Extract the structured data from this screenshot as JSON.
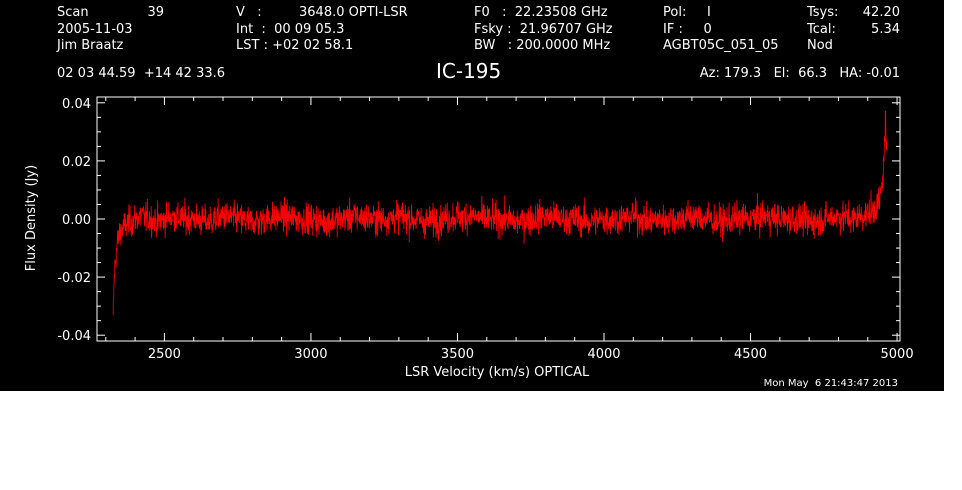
{
  "header": {
    "scan_label": "Scan",
    "scan_value": "39",
    "date": "2005-11-03",
    "observer": "Jim Braatz",
    "velocity_label": "V   :",
    "velocity_value": "3648.0 OPTI-LSR",
    "int_line": "Int  :  00 09 05.3",
    "lst_line": "LST : +02 02 58.1",
    "f0_line": "F0   :  22.23508 GHz",
    "fsky_line": "Fsky :  21.96707 GHz",
    "bw_line": "BW   : 200.0000 MHz",
    "pol_line": "Pol:     I",
    "if_line": "IF :     0",
    "project": "AGBT05C_051_05",
    "tsys_label": "Tsys:",
    "tsys_value": "42.20",
    "tcal_label": "Tcal:",
    "tcal_value": "5.34",
    "mode": "Nod",
    "coordinates": "02 03 44.59  +14 42 33.6",
    "source": "IC-195",
    "pointing": "Az: 179.3   El:  66.3   HA: -0.01",
    "timestamp": "Mon May  6 21:43:47 2013"
  },
  "colors": {
    "background": "#000000",
    "foreground": "#ffffff",
    "trace": "#ff0000"
  },
  "chart_data": {
    "type": "line",
    "xlabel": "LSR Velocity (km/s) OPTICAL",
    "ylabel": "Flux Density (Jy)",
    "xlim": [
      2270,
      5010
    ],
    "ylim": [
      -0.042,
      0.042
    ],
    "x_ticks": [
      2500,
      3000,
      3500,
      4000,
      4500,
      5000
    ],
    "y_ticks": [
      -0.04,
      -0.02,
      0.0,
      0.02,
      0.04
    ],
    "x_tick_labels": [
      "2500",
      "3000",
      "3500",
      "4000",
      "4500",
      "5000"
    ],
    "y_tick_labels": [
      "-0.04",
      "-0.02",
      "0.00",
      "0.02",
      "0.04"
    ],
    "grid": false,
    "series": [
      {
        "color": "#ff0000",
        "x": [
          2325,
          2330,
          2335,
          2340,
          2345,
          2350,
          2360,
          2370,
          2385,
          2400,
          2420,
          2450,
          2480,
          2520,
          2560,
          2600,
          2650,
          2700,
          2750,
          2800,
          2850,
          2900,
          2950,
          3000,
          3050,
          3100,
          3150,
          3200,
          3250,
          3300,
          3350,
          3400,
          3450,
          3500,
          3550,
          3600,
          3650,
          3700,
          3750,
          3800,
          3850,
          3900,
          3950,
          4000,
          4050,
          4100,
          4150,
          4200,
          4250,
          4300,
          4350,
          4400,
          4450,
          4500,
          4550,
          4600,
          4650,
          4700,
          4750,
          4800,
          4850,
          4900,
          4920,
          4940,
          4950,
          4955,
          4960,
          4965
        ],
        "y": [
          -0.033,
          -0.018,
          -0.012,
          -0.008,
          -0.006,
          -0.004,
          -0.003,
          -0.002,
          -0.001,
          0.0,
          0.001,
          0.0,
          -0.001,
          0.001,
          0.0,
          0.0,
          -0.001,
          0.001,
          0.0,
          -0.001,
          0.0,
          0.001,
          0.0,
          0.0,
          -0.001,
          0.0,
          0.001,
          0.0,
          0.0,
          0.001,
          0.0,
          -0.001,
          0.0,
          0.001,
          0.001,
          0.0,
          0.0,
          -0.001,
          0.0,
          0.001,
          0.0,
          0.0,
          -0.001,
          0.0,
          0.0,
          0.001,
          -0.001,
          0.0,
          0.0,
          0.001,
          0.0,
          -0.001,
          0.0,
          0.0,
          0.001,
          0.0,
          0.0,
          -0.001,
          0.0,
          0.001,
          0.0,
          0.002,
          0.003,
          0.006,
          0.012,
          0.02,
          0.035,
          0.02
        ]
      }
    ]
  }
}
